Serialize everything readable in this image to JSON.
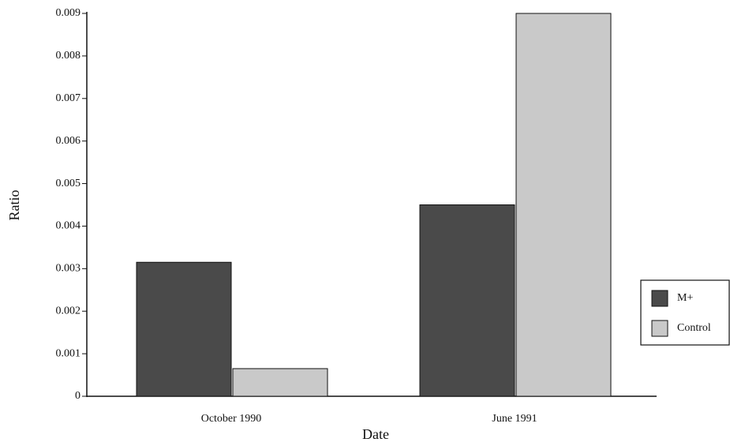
{
  "chart_data": {
    "type": "bar",
    "x_label": "Date",
    "y_label": "Ratio",
    "categories": [
      "October 1990",
      "June 1991"
    ],
    "series": [
      {
        "name": "M+",
        "color": "#4a4a4a",
        "values": [
          0.00315,
          0.0045
        ]
      },
      {
        "name": "Control",
        "color": "#c9c9c9",
        "values": [
          0.00065,
          0.009
        ]
      }
    ],
    "ylim": [
      0,
      0.009
    ],
    "yticks": [
      0,
      0.001,
      0.002,
      0.003,
      0.004,
      0.005,
      0.006,
      0.007,
      0.008,
      0.009
    ],
    "grid": false,
    "legend": "right"
  }
}
